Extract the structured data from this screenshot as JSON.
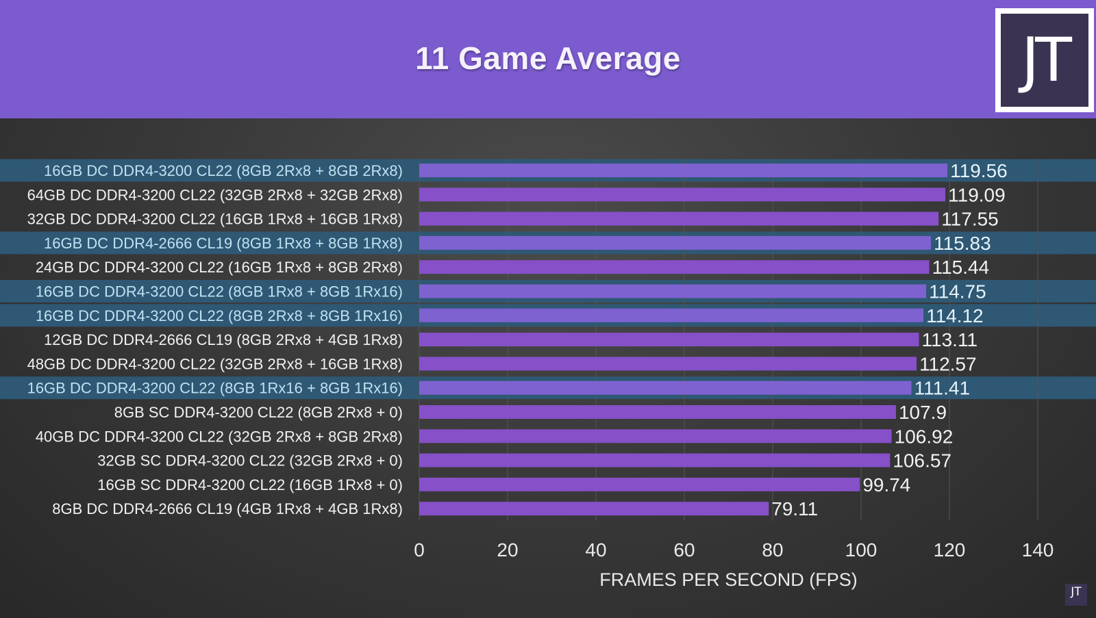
{
  "chart_data": {
    "type": "bar",
    "orientation": "horizontal",
    "title": "11 Game Average",
    "xlabel": "FRAMES PER SECOND (FPS)",
    "ylabel": "",
    "xlim": [
      0,
      140
    ],
    "xticks": [
      "0",
      "20",
      "40",
      "60",
      "80",
      "100",
      "120",
      "140"
    ],
    "xtick_values": [
      0,
      20,
      40,
      60,
      80,
      100,
      120,
      140
    ],
    "grid": true,
    "categories": [
      "16GB DC DDR4-3200 CL22 (8GB 2Rx8 + 8GB 2Rx8)",
      "64GB DC DDR4-3200 CL22 (32GB 2Rx8 + 32GB 2Rx8)",
      "32GB DC DDR4-3200 CL22 (16GB 1Rx8 + 16GB 1Rx8)",
      "16GB DC DDR4-2666 CL19 (8GB 1Rx8 + 8GB 1Rx8)",
      "24GB DC DDR4-3200 CL22 (16GB 1Rx8 + 8GB 2Rx8)",
      "16GB DC DDR4-3200 CL22 (8GB 1Rx8 + 8GB 1Rx16)",
      "16GB DC DDR4-3200 CL22 (8GB 2Rx8 + 8GB 1Rx16)",
      "12GB DC DDR4-2666 CL19 (8GB 2Rx8 + 4GB 1Rx8)",
      "48GB DC DDR4-3200 CL22 (32GB 2Rx8 + 16GB 1Rx8)",
      "16GB DC DDR4-3200 CL22 (8GB 1Rx16 + 8GB 1Rx16)",
      "8GB SC DDR4-3200 CL22 (8GB 2Rx8 + 0)",
      "40GB DC DDR4-3200 CL22 (32GB 2Rx8 + 8GB 2Rx8)",
      "32GB SC DDR4-3200 CL22 (32GB 2Rx8 + 0)",
      "16GB SC DDR4-3200 CL22 (16GB 1Rx8 + 0)",
      "8GB DC DDR4-2666 CL19 (4GB 1Rx8 + 4GB 1Rx8)"
    ],
    "values": [
      119.56,
      119.09,
      117.55,
      115.83,
      115.44,
      114.75,
      114.12,
      113.11,
      112.57,
      111.41,
      107.9,
      106.92,
      106.57,
      99.74,
      79.11
    ],
    "value_labels": [
      "119.56",
      "119.09",
      "117.55",
      "115.83",
      "115.44",
      "114.75",
      "114.12",
      "113.11",
      "112.57",
      "111.41",
      "107.9",
      "106.92",
      "106.57",
      "99.74",
      "79.11"
    ],
    "highlighted": [
      true,
      false,
      false,
      true,
      false,
      true,
      true,
      false,
      false,
      true,
      false,
      false,
      false,
      false,
      false
    ],
    "colors": {
      "bar": "#8650c8",
      "bar_highlight": "#7e62d0",
      "row_highlight": "#2e5874",
      "header": "#7b5bce",
      "grid": "#555555"
    }
  },
  "logo": {
    "text": "JT",
    "mini_text": "JT"
  }
}
